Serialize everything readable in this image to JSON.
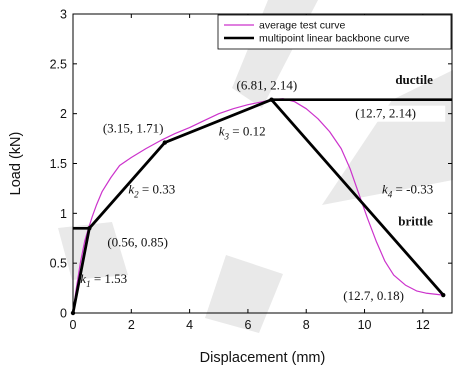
{
  "chart_data": {
    "type": "line",
    "xlabel": "Displacement (mm)",
    "ylabel": "Load (kN)",
    "xlim": [
      0,
      13
    ],
    "ylim": [
      0,
      3
    ],
    "x_ticks": [
      "0",
      "2",
      "4",
      "6",
      "8",
      "10",
      "12"
    ],
    "y_ticks": [
      "0",
      "0.5",
      "1",
      "1.5",
      "2",
      "2.5",
      "3"
    ],
    "legend_position": "top-right",
    "grid": false,
    "series": [
      {
        "name": "average test curve",
        "color": "#cc33cc",
        "x": [
          0,
          0.1,
          0.25,
          0.4,
          0.5,
          0.65,
          0.8,
          1.0,
          1.3,
          1.6,
          2.0,
          2.5,
          3.0,
          3.5,
          4.0,
          4.5,
          5.0,
          5.5,
          6.0,
          6.5,
          6.8,
          7.2,
          7.6,
          8.0,
          8.4,
          8.8,
          9.2,
          9.5,
          9.8,
          10.1,
          10.4,
          10.7,
          11.0,
          11.4,
          11.8,
          12.1,
          12.4,
          12.7
        ],
        "y": [
          0,
          0.22,
          0.5,
          0.72,
          0.82,
          0.96,
          1.08,
          1.22,
          1.36,
          1.48,
          1.56,
          1.65,
          1.73,
          1.8,
          1.86,
          1.93,
          2.0,
          2.05,
          2.09,
          2.12,
          2.14,
          2.15,
          2.12,
          2.05,
          1.95,
          1.82,
          1.65,
          1.45,
          1.2,
          0.95,
          0.72,
          0.52,
          0.38,
          0.28,
          0.22,
          0.2,
          0.19,
          0.18
        ]
      },
      {
        "name": "multipoint linear backbone curve",
        "color": "#000000",
        "x": [
          0,
          0.56,
          3.15,
          6.81,
          12.7
        ],
        "y": [
          0,
          0.85,
          1.71,
          2.14,
          0.18
        ]
      }
    ],
    "extra_lines": [
      {
        "x": [
          6.81,
          13
        ],
        "y": [
          2.14,
          2.14
        ]
      },
      {
        "x": [
          0,
          0.56
        ],
        "y": [
          0.85,
          0.85
        ]
      }
    ],
    "point_labels": [
      {
        "text": "(0.56, 0.85)",
        "x": 0.56,
        "y": 0.85
      },
      {
        "text": "(3.15, 1.71)",
        "x": 3.15,
        "y": 1.71
      },
      {
        "text": "(6.81, 2.14)",
        "x": 6.81,
        "y": 2.14
      },
      {
        "text": "(12.7, 2.14)",
        "x": 12.7,
        "y": 2.14
      },
      {
        "text": "(12.7, 0.18)",
        "x": 12.7,
        "y": 0.18
      }
    ],
    "stiffness_labels": [
      {
        "sym": "k",
        "sub": "1",
        "rest": " = 1.53",
        "x": 0.25,
        "y": 0.3
      },
      {
        "sym": "k",
        "sub": "2",
        "rest": " = 0.33",
        "x": 1.9,
        "y": 1.2
      },
      {
        "sym": "k",
        "sub": "3",
        "rest": " = 0.12",
        "x": 5.0,
        "y": 1.78
      },
      {
        "sym": "k",
        "sub": "4",
        "rest": " = -0.33",
        "x": 10.6,
        "y": 1.2
      }
    ],
    "behavior_labels": [
      {
        "text": "ductile",
        "x": 11.7,
        "y": 2.3
      },
      {
        "text": "brittle",
        "x": 11.75,
        "y": 0.88
      }
    ]
  }
}
